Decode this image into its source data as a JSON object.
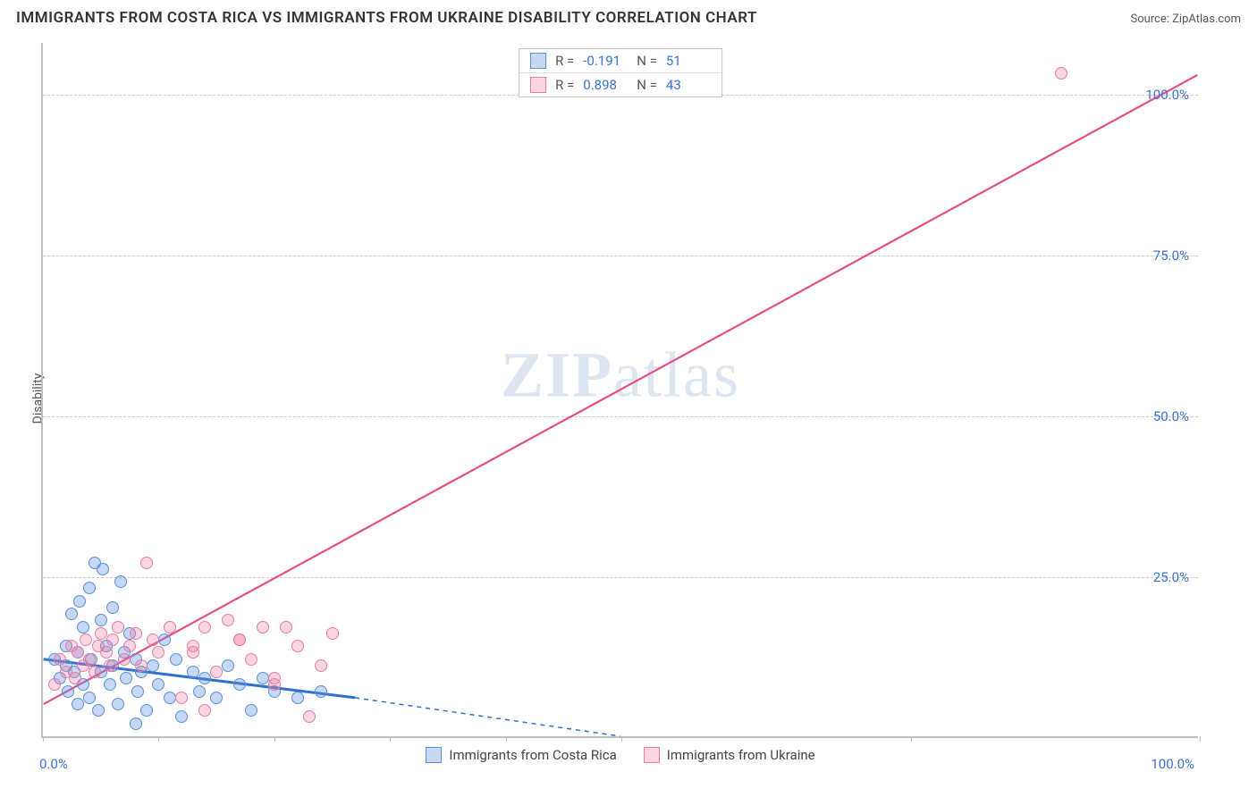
{
  "header": {
    "title": "IMMIGRANTS FROM COSTA RICA VS IMMIGRANTS FROM UKRAINE DISABILITY CORRELATION CHART",
    "source": "Source: ZipAtlas.com"
  },
  "y_axis_label": "Disability",
  "watermark": {
    "bold": "ZIP",
    "rest": "atlas"
  },
  "chart": {
    "type": "scatter-with-regression",
    "xlim": [
      0,
      100
    ],
    "ylim": [
      0,
      108
    ],
    "y_ticks": [
      25,
      50,
      75,
      100
    ],
    "y_tick_labels": [
      "25.0%",
      "50.0%",
      "75.0%",
      "100.0%"
    ],
    "x_ticks": [
      0,
      10,
      20,
      30,
      40,
      50,
      75,
      100
    ],
    "x_tick_labels": {
      "0": "0.0%",
      "100": "100.0%"
    },
    "grid_color": "#cccccc",
    "axis_color": "#bfbfbf",
    "background": "#ffffff",
    "tick_label_color": "#3b6fd8",
    "series": [
      {
        "name_key": "costa_rica",
        "label": "Immigrants from Costa Rica",
        "color_fill": "rgba(93,144,227,0.35)",
        "color_stroke": "#5a8fd8",
        "line_color": "#2f6fd0",
        "R": "-0.191",
        "N": "51",
        "points": [
          [
            1,
            12
          ],
          [
            1.5,
            9
          ],
          [
            2,
            11
          ],
          [
            2,
            14
          ],
          [
            2.2,
            7
          ],
          [
            2.5,
            19
          ],
          [
            2.7,
            10
          ],
          [
            3,
            5
          ],
          [
            3,
            13
          ],
          [
            3.2,
            21
          ],
          [
            3.5,
            8
          ],
          [
            3.5,
            17
          ],
          [
            4,
            23
          ],
          [
            4,
            6
          ],
          [
            4.2,
            12
          ],
          [
            4.5,
            27
          ],
          [
            4.8,
            4
          ],
          [
            5,
            10
          ],
          [
            5,
            18
          ],
          [
            5.2,
            26
          ],
          [
            5.5,
            14
          ],
          [
            5.8,
            8
          ],
          [
            6,
            20
          ],
          [
            6,
            11
          ],
          [
            6.5,
            5
          ],
          [
            6.7,
            24
          ],
          [
            7,
            13
          ],
          [
            7.2,
            9
          ],
          [
            7.5,
            16
          ],
          [
            8,
            2
          ],
          [
            8,
            12
          ],
          [
            8.2,
            7
          ],
          [
            8.5,
            10
          ],
          [
            9,
            4
          ],
          [
            9.5,
            11
          ],
          [
            10,
            8
          ],
          [
            10.5,
            15
          ],
          [
            11,
            6
          ],
          [
            11.5,
            12
          ],
          [
            12,
            3
          ],
          [
            13,
            10
          ],
          [
            13.5,
            7
          ],
          [
            14,
            9
          ],
          [
            15,
            6
          ],
          [
            16,
            11
          ],
          [
            17,
            8
          ],
          [
            18,
            4
          ],
          [
            19,
            9
          ],
          [
            20,
            7
          ],
          [
            22,
            6
          ],
          [
            24,
            7
          ]
        ],
        "regression": {
          "x1": 0,
          "y1": 12,
          "x2": 27,
          "y2": 6,
          "dash_x2": 50,
          "dash_y2": 0
        }
      },
      {
        "name_key": "ukraine",
        "label": "Immigrants from Ukraine",
        "color_fill": "rgba(236,120,160,0.30)",
        "color_stroke": "#e87ca3",
        "line_color": "#e84e84",
        "R": "0.898",
        "N": "43",
        "points": [
          [
            1,
            8
          ],
          [
            1.5,
            12
          ],
          [
            2,
            10
          ],
          [
            2.5,
            14
          ],
          [
            2.8,
            9
          ],
          [
            3,
            13
          ],
          [
            3.5,
            11
          ],
          [
            3.7,
            15
          ],
          [
            4,
            12
          ],
          [
            4.5,
            10
          ],
          [
            4.8,
            14
          ],
          [
            5,
            16
          ],
          [
            5.5,
            13
          ],
          [
            5.8,
            11
          ],
          [
            6,
            15
          ],
          [
            6.5,
            17
          ],
          [
            7,
            12
          ],
          [
            7.5,
            14
          ],
          [
            8,
            16
          ],
          [
            8.5,
            11
          ],
          [
            9,
            27
          ],
          [
            9.5,
            15
          ],
          [
            10,
            13
          ],
          [
            11,
            17
          ],
          [
            12,
            6
          ],
          [
            13,
            14
          ],
          [
            14,
            17
          ],
          [
            15,
            10
          ],
          [
            16,
            18
          ],
          [
            17,
            15
          ],
          [
            18,
            12
          ],
          [
            19,
            17
          ],
          [
            20,
            9
          ],
          [
            21,
            17
          ],
          [
            22,
            14
          ],
          [
            23,
            3
          ],
          [
            24,
            11
          ],
          [
            25,
            16
          ],
          [
            14,
            4
          ],
          [
            17,
            15
          ],
          [
            20,
            8
          ],
          [
            13,
            13
          ],
          [
            88,
            103
          ]
        ],
        "regression": {
          "x1": 0,
          "y1": 5,
          "x2": 100,
          "y2": 103
        }
      }
    ]
  },
  "stats_labels": {
    "R": "R =",
    "N": "N ="
  }
}
